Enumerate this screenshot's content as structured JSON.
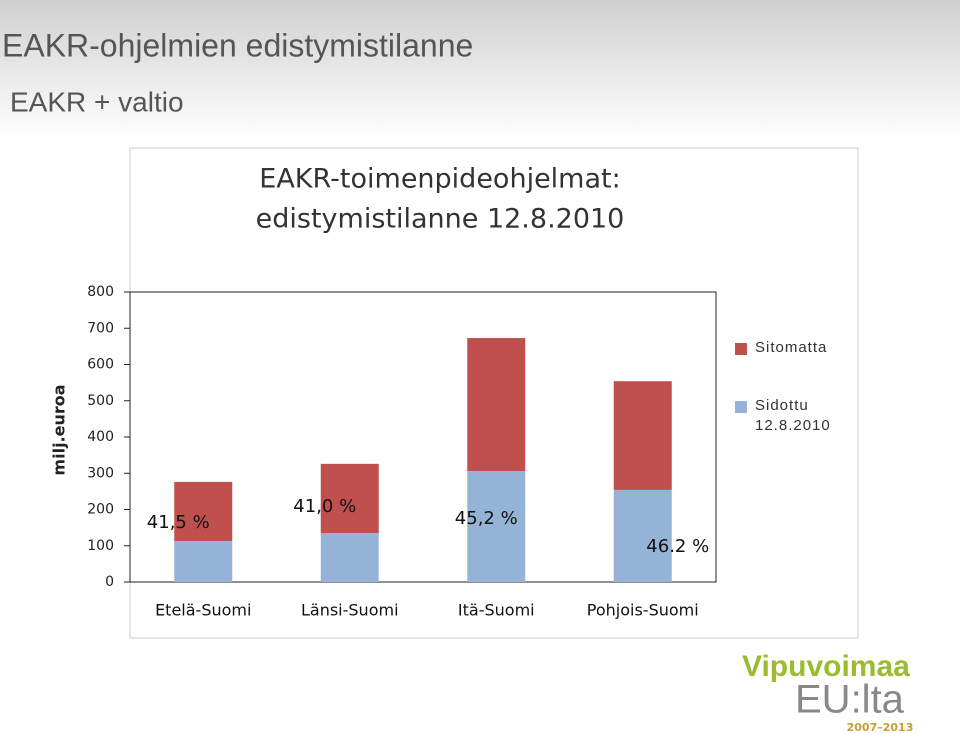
{
  "slide": {
    "title": "EAKR-ohjelmien edistymistilanne",
    "subtitle": "EAKR + valtio",
    "logo": {
      "line1": "Vipuvoimaa",
      "line2": "EU:lta",
      "years": "2007–2013"
    }
  },
  "chart_data": {
    "type": "stacked_bar",
    "title": [
      "EAKR-toimenpideohjelmat:",
      "edistymistilanne 12.8.2010"
    ],
    "y_label": "milj.euroa",
    "categories": [
      "Etelä-Suomi",
      "Länsi-Suomi",
      "Itä-Suomi",
      "Pohjois-Suomi"
    ],
    "series": [
      {
        "name": "Sidottu 12.8.2010",
        "color": "#95b3d7",
        "values": [
          113,
          135,
          306,
          254
        ]
      },
      {
        "name": "Sitomatta",
        "color": "#c0504d",
        "values": [
          163,
          191,
          367,
          300
        ]
      }
    ],
    "annotations": [
      "41,5 %",
      "41,0 %",
      "45,2 %",
      "46.2 %"
    ],
    "ylim": [
      0,
      800
    ],
    "yticks": [
      0,
      100,
      200,
      300,
      400,
      500,
      600,
      700,
      800
    ],
    "legend": "right"
  }
}
